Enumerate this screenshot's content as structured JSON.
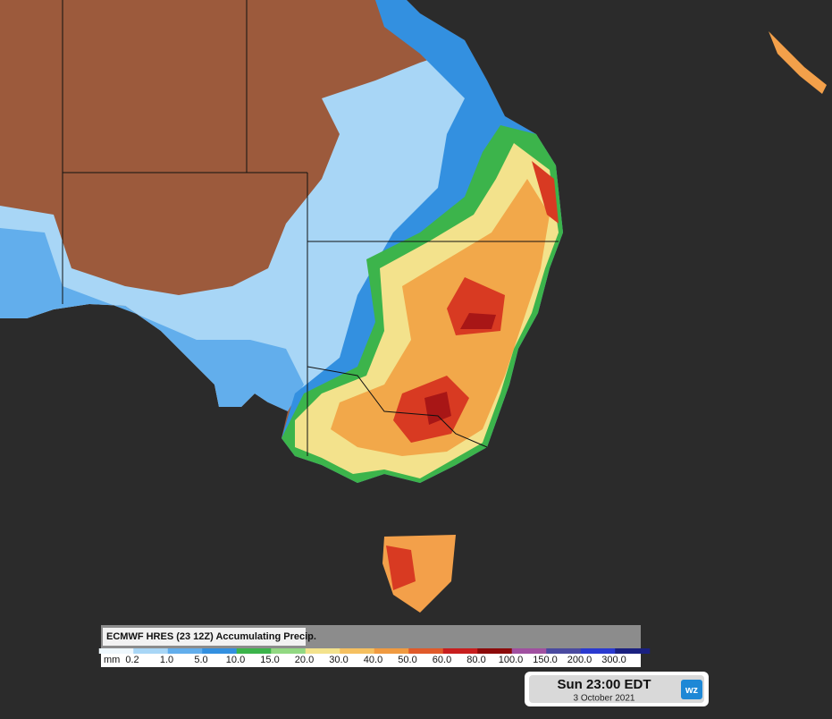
{
  "legend": {
    "title": "ECMWF HRES (23 12Z) Accumulating Precip.",
    "unit": "mm",
    "labels": [
      "0.2",
      "1.0",
      "5.0",
      "10.0",
      "15.0",
      "20.0",
      "30.0",
      "40.0",
      "50.0",
      "60.0",
      "80.0",
      "100.0",
      "150.0",
      "200.0",
      "300.0"
    ]
  },
  "timestamp": {
    "time": "Sun 23:00 EDT",
    "date": "3 October 2021"
  },
  "logo": "wz"
}
